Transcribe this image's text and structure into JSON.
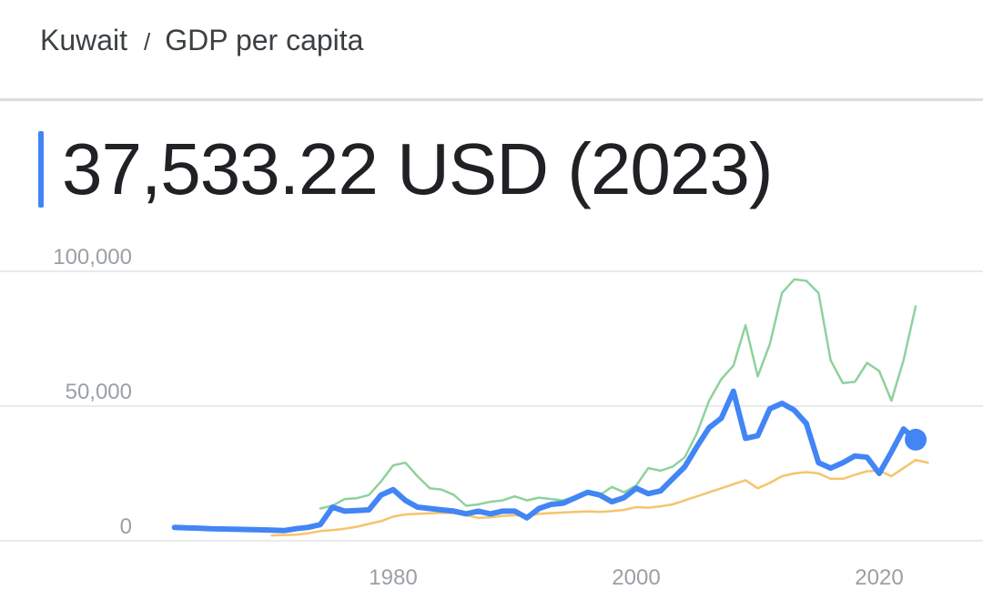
{
  "breadcrumb": {
    "country": "Kuwait",
    "separator": "/",
    "indicator": "GDP per capita"
  },
  "headline": {
    "value": "37,533.22 USD (2023)"
  },
  "colors": {
    "accent": "#4285f4",
    "series_main": "#4285f4",
    "series_green": "#8fd19e",
    "series_orange": "#f6c46b",
    "grid": "#e8eaed",
    "divider": "#dadce0"
  },
  "chart_data": {
    "type": "line",
    "title": "",
    "xlabel": "",
    "ylabel": "",
    "xlim": [
      1960,
      2029
    ],
    "ylim": [
      0,
      100000
    ],
    "x_ticks": [
      1980,
      2000,
      2020
    ],
    "x_tick_labels": [
      "1980",
      "2000",
      "2020"
    ],
    "y_ticks": [
      0,
      50000,
      100000
    ],
    "y_tick_labels": [
      "0",
      "50,000",
      "100,000"
    ],
    "grid": true,
    "legend": "none",
    "series": [
      {
        "key": "green",
        "color": "#8fd19e",
        "points": [
          [
            1974,
            12000
          ],
          [
            1975,
            13000
          ],
          [
            1976,
            15500
          ],
          [
            1977,
            15800
          ],
          [
            1978,
            17000
          ],
          [
            1979,
            22000
          ],
          [
            1980,
            28000
          ],
          [
            1981,
            29000
          ],
          [
            1982,
            24000
          ],
          [
            1983,
            19500
          ],
          [
            1984,
            19000
          ],
          [
            1985,
            17000
          ],
          [
            1986,
            13000
          ],
          [
            1987,
            13500
          ],
          [
            1988,
            14500
          ],
          [
            1989,
            15000
          ],
          [
            1990,
            16500
          ],
          [
            1991,
            15000
          ],
          [
            1992,
            16000
          ],
          [
            1993,
            15500
          ],
          [
            1994,
            15000
          ],
          [
            1995,
            16500
          ],
          [
            1996,
            18000
          ],
          [
            1997,
            17000
          ],
          [
            1998,
            20000
          ],
          [
            1999,
            18000
          ],
          [
            2000,
            20500
          ],
          [
            2001,
            27000
          ],
          [
            2002,
            26000
          ],
          [
            2003,
            27500
          ],
          [
            2004,
            31000
          ],
          [
            2005,
            40000
          ],
          [
            2006,
            52000
          ],
          [
            2007,
            60000
          ],
          [
            2008,
            65000
          ],
          [
            2009,
            80000
          ],
          [
            2010,
            61000
          ],
          [
            2011,
            73000
          ],
          [
            2012,
            92000
          ],
          [
            2013,
            97000
          ],
          [
            2014,
            96500
          ],
          [
            2015,
            92000
          ],
          [
            2016,
            67000
          ],
          [
            2017,
            58500
          ],
          [
            2018,
            59000
          ],
          [
            2019,
            66000
          ],
          [
            2020,
            63000
          ],
          [
            2021,
            52000
          ],
          [
            2022,
            67000
          ],
          [
            2023,
            87000
          ]
        ]
      },
      {
        "key": "orange",
        "color": "#f6c46b",
        "points": [
          [
            1970,
            2000
          ],
          [
            1972,
            2300
          ],
          [
            1973,
            2800
          ],
          [
            1974,
            3600
          ],
          [
            1975,
            4000
          ],
          [
            1976,
            4500
          ],
          [
            1977,
            5200
          ],
          [
            1978,
            6300
          ],
          [
            1979,
            7300
          ],
          [
            1980,
            9000
          ],
          [
            1981,
            9800
          ],
          [
            1982,
            10000
          ],
          [
            1983,
            10200
          ],
          [
            1984,
            10400
          ],
          [
            1985,
            10300
          ],
          [
            1986,
            9500
          ],
          [
            1987,
            8500
          ],
          [
            1988,
            8700
          ],
          [
            1989,
            9200
          ],
          [
            1990,
            9500
          ],
          [
            1991,
            9200
          ],
          [
            1992,
            10000
          ],
          [
            1993,
            10300
          ],
          [
            1994,
            10500
          ],
          [
            1995,
            10700
          ],
          [
            1996,
            10900
          ],
          [
            1997,
            10700
          ],
          [
            1998,
            11000
          ],
          [
            1999,
            11500
          ],
          [
            2000,
            12500
          ],
          [
            2001,
            12300
          ],
          [
            2002,
            12800
          ],
          [
            2003,
            13500
          ],
          [
            2004,
            15000
          ],
          [
            2005,
            16500
          ],
          [
            2006,
            18000
          ],
          [
            2007,
            19500
          ],
          [
            2008,
            21000
          ],
          [
            2009,
            22500
          ],
          [
            2010,
            19500
          ],
          [
            2011,
            21500
          ],
          [
            2012,
            24000
          ],
          [
            2013,
            25000
          ],
          [
            2014,
            25500
          ],
          [
            2015,
            25000
          ],
          [
            2016,
            23000
          ],
          [
            2017,
            23000
          ],
          [
            2018,
            24500
          ],
          [
            2019,
            25800
          ],
          [
            2020,
            26000
          ],
          [
            2021,
            24000
          ],
          [
            2022,
            27000
          ],
          [
            2023,
            30000
          ],
          [
            2024,
            29000
          ]
        ]
      },
      {
        "key": "main",
        "color": "#4285f4",
        "points": [
          [
            1962,
            5000
          ],
          [
            1963,
            4800
          ],
          [
            1964,
            4700
          ],
          [
            1965,
            4500
          ],
          [
            1966,
            4400
          ],
          [
            1967,
            4300
          ],
          [
            1968,
            4200
          ],
          [
            1969,
            4100
          ],
          [
            1970,
            4000
          ],
          [
            1971,
            3800
          ],
          [
            1972,
            4500
          ],
          [
            1973,
            5000
          ],
          [
            1974,
            6000
          ],
          [
            1975,
            12500
          ],
          [
            1976,
            11000
          ],
          [
            1977,
            11200
          ],
          [
            1978,
            11500
          ],
          [
            1979,
            17000
          ],
          [
            1980,
            19000
          ],
          [
            1981,
            15000
          ],
          [
            1982,
            12500
          ],
          [
            1983,
            12000
          ],
          [
            1984,
            11500
          ],
          [
            1985,
            11000
          ],
          [
            1986,
            10000
          ],
          [
            1987,
            11000
          ],
          [
            1988,
            10000
          ],
          [
            1989,
            11000
          ],
          [
            1990,
            11000
          ],
          [
            1991,
            8500
          ],
          [
            1992,
            12000
          ],
          [
            1993,
            13500
          ],
          [
            1994,
            14000
          ],
          [
            1995,
            16000
          ],
          [
            1996,
            18000
          ],
          [
            1997,
            17000
          ],
          [
            1998,
            14500
          ],
          [
            1999,
            16000
          ],
          [
            2000,
            19500
          ],
          [
            2001,
            17500
          ],
          [
            2002,
            18500
          ],
          [
            2003,
            23000
          ],
          [
            2004,
            27500
          ],
          [
            2005,
            35000
          ],
          [
            2006,
            42000
          ],
          [
            2007,
            45500
          ],
          [
            2008,
            55500
          ],
          [
            2009,
            38000
          ],
          [
            2010,
            39000
          ],
          [
            2011,
            49000
          ],
          [
            2012,
            51000
          ],
          [
            2013,
            48500
          ],
          [
            2014,
            43500
          ],
          [
            2015,
            29000
          ],
          [
            2016,
            27000
          ],
          [
            2017,
            29000
          ],
          [
            2018,
            31500
          ],
          [
            2019,
            31000
          ],
          [
            2020,
            25000
          ],
          [
            2021,
            33000
          ],
          [
            2022,
            41500
          ]
        ],
        "marker": [
          2023,
          37533.22
        ]
      }
    ]
  }
}
